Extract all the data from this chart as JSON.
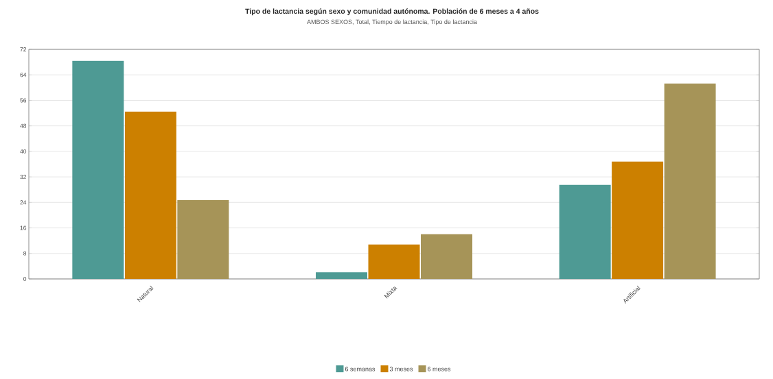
{
  "chart_data": {
    "type": "bar",
    "title": "Tipo de lactancia según sexo y comunidad autónoma. Población de 6 meses a 4 años",
    "subtitle": "AMBOS SEXOS, Total, Tiempo de lactancia, Tipo de lactancia",
    "categories": [
      "Natural",
      "Mixta",
      "Artificial"
    ],
    "series": [
      {
        "name": "6 semanas",
        "color": "#4e9a94",
        "values": [
          68.4,
          2.1,
          29.5
        ]
      },
      {
        "name": "3 meses",
        "color": "#cc8000",
        "values": [
          52.5,
          10.8,
          36.8
        ]
      },
      {
        "name": "6 meses",
        "color": "#a69458",
        "values": [
          24.7,
          14.0,
          61.3
        ]
      }
    ],
    "ylim": [
      0,
      72
    ],
    "yticks": [
      0,
      8,
      16,
      24,
      32,
      40,
      48,
      56,
      64,
      72
    ],
    "grid": "y",
    "legend": "bottom"
  }
}
